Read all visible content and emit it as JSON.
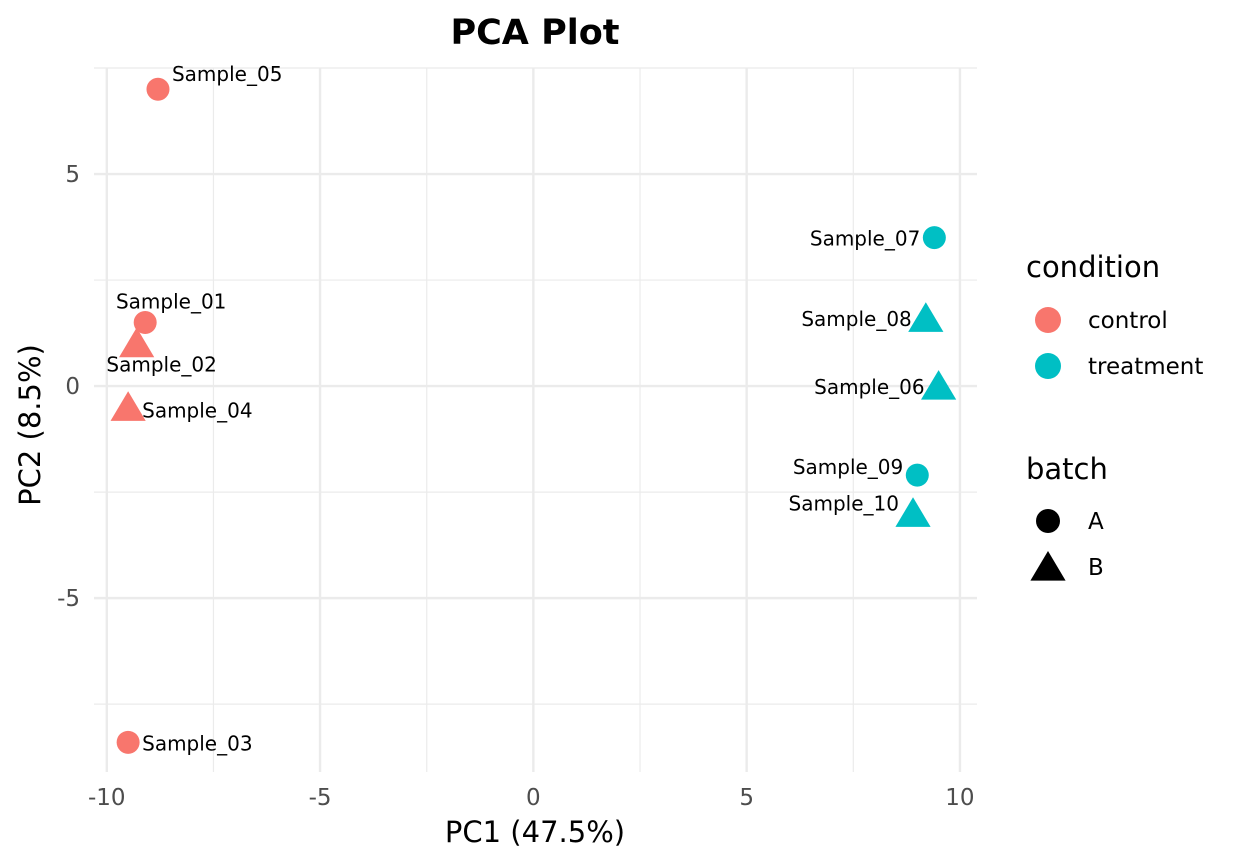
{
  "chart_data": {
    "type": "scatter",
    "title": "PCA Plot",
    "xlabel": "PC1 (47.5%)",
    "ylabel": "PC2 (8.5%)",
    "xlim": [
      -10.3,
      10.4
    ],
    "ylim": [
      -9.1,
      7.5
    ],
    "x_ticks": [
      -10,
      -5,
      0,
      5,
      10
    ],
    "x_tick_labels": [
      "-10",
      "-5",
      "0",
      "5",
      "10"
    ],
    "y_ticks": [
      -5,
      0,
      5
    ],
    "y_tick_labels": [
      "-5",
      "0",
      "5"
    ],
    "grid": true,
    "points": [
      {
        "label": "Sample_01",
        "x": -9.1,
        "y": 1.5,
        "condition": "control",
        "batch": "A"
      },
      {
        "label": "Sample_02",
        "x": -9.3,
        "y": 1.0,
        "condition": "control",
        "batch": "B"
      },
      {
        "label": "Sample_03",
        "x": -9.5,
        "y": -8.4,
        "condition": "control",
        "batch": "A"
      },
      {
        "label": "Sample_04",
        "x": -9.5,
        "y": -0.5,
        "condition": "control",
        "batch": "B"
      },
      {
        "label": "Sample_05",
        "x": -8.8,
        "y": 7.0,
        "condition": "control",
        "batch": "A"
      },
      {
        "label": "Sample_06",
        "x": 9.5,
        "y": 0.0,
        "condition": "treatment",
        "batch": "B"
      },
      {
        "label": "Sample_07",
        "x": 9.4,
        "y": 3.5,
        "condition": "treatment",
        "batch": "A"
      },
      {
        "label": "Sample_08",
        "x": 9.2,
        "y": 1.6,
        "condition": "treatment",
        "batch": "B"
      },
      {
        "label": "Sample_09",
        "x": 9.0,
        "y": -2.1,
        "condition": "treatment",
        "batch": "A"
      },
      {
        "label": "Sample_10",
        "x": 8.9,
        "y": -3.0,
        "condition": "treatment",
        "batch": "B"
      }
    ],
    "legend": {
      "placement": "right",
      "condition": {
        "title": "condition",
        "items": [
          {
            "label": "control",
            "color": "#F8766D"
          },
          {
            "label": "treatment",
            "color": "#00BFC4"
          }
        ]
      },
      "batch": {
        "title": "batch",
        "items": [
          {
            "label": "A",
            "shape": "circle"
          },
          {
            "label": "B",
            "shape": "triangle"
          }
        ]
      }
    },
    "colors": {
      "control": "#F8766D",
      "treatment": "#00BFC4",
      "grid": "#EBEBEB",
      "text": "#000000",
      "tick_text": "#4D4D4D"
    }
  }
}
